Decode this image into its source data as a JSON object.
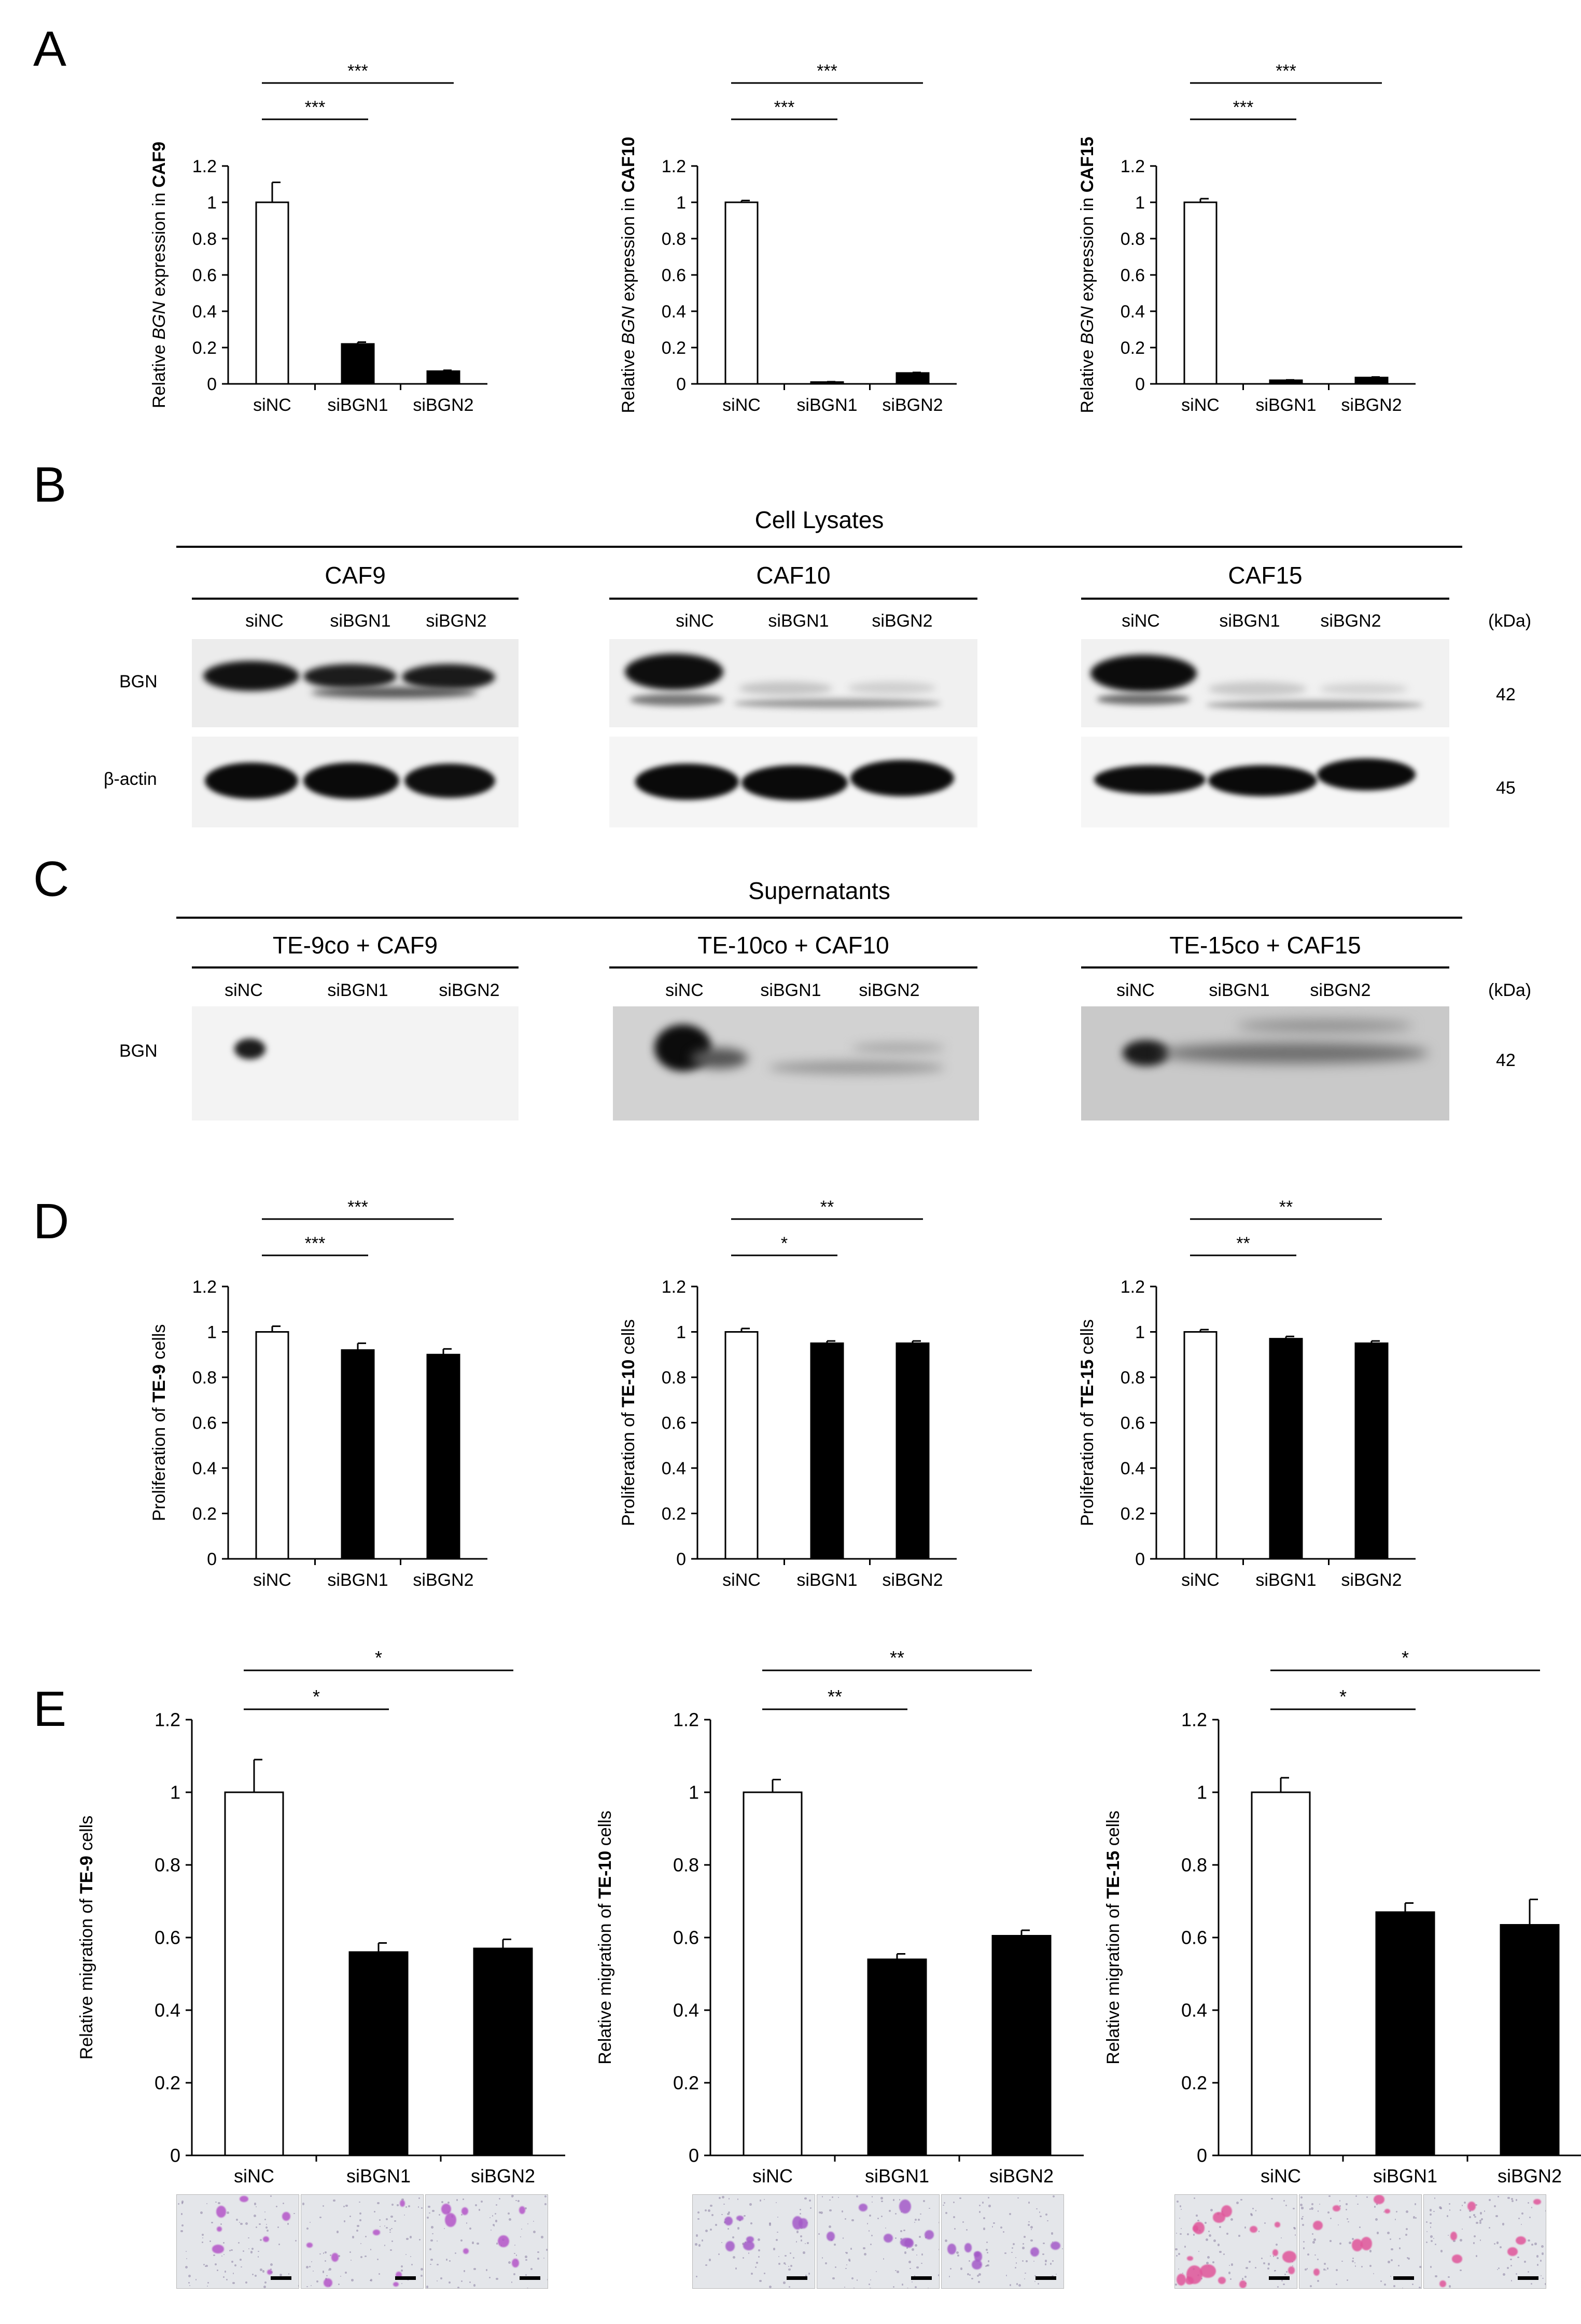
{
  "panels": {
    "A": "A",
    "B": "B",
    "C": "C",
    "D": "D",
    "E": "E"
  },
  "chart_data": [
    {
      "id": "A1",
      "type": "bar",
      "categories": [
        "siNC",
        "siBGN1",
        "siBGN2"
      ],
      "values": [
        1.0,
        0.22,
        0.07
      ],
      "errors": [
        0.11,
        0.01,
        0.005
      ],
      "ylabel_pre": "Relative ",
      "ylabel_italic": "BGN",
      "ylabel_mid": " expression in ",
      "ylabel_bold": "CAF9",
      "ylim": [
        0,
        1.2
      ],
      "yticks": [
        0,
        0.2,
        0.4,
        0.6,
        0.8,
        1,
        1.2
      ],
      "sig": [
        {
          "from": 0,
          "to": 1,
          "label": "***"
        },
        {
          "from": 0,
          "to": 2,
          "label": "***"
        }
      ]
    },
    {
      "id": "A2",
      "type": "bar",
      "categories": [
        "siNC",
        "siBGN1",
        "siBGN2"
      ],
      "values": [
        1.0,
        0.01,
        0.06
      ],
      "errors": [
        0.01,
        0.002,
        0.003
      ],
      "ylabel_pre": "Relative ",
      "ylabel_italic": "BGN",
      "ylabel_mid": " expression in ",
      "ylabel_bold": "CAF10",
      "ylim": [
        0,
        1.2
      ],
      "yticks": [
        0,
        0.2,
        0.4,
        0.6,
        0.8,
        1,
        1.2
      ],
      "sig": [
        {
          "from": 0,
          "to": 1,
          "label": "***"
        },
        {
          "from": 0,
          "to": 2,
          "label": "***"
        }
      ]
    },
    {
      "id": "A3",
      "type": "bar",
      "categories": [
        "siNC",
        "siBGN1",
        "siBGN2"
      ],
      "values": [
        1.0,
        0.02,
        0.035
      ],
      "errors": [
        0.02,
        0.002,
        0.003
      ],
      "ylabel_pre": "Relative ",
      "ylabel_italic": "BGN",
      "ylabel_mid": " expression in ",
      "ylabel_bold": "CAF15",
      "ylim": [
        0,
        1.2
      ],
      "yticks": [
        0,
        0.2,
        0.4,
        0.6,
        0.8,
        1,
        1.2
      ],
      "sig": [
        {
          "from": 0,
          "to": 1,
          "label": "***"
        },
        {
          "from": 0,
          "to": 2,
          "label": "***"
        }
      ]
    },
    {
      "id": "D1",
      "type": "bar",
      "categories": [
        "siNC",
        "siBGN1",
        "siBGN2"
      ],
      "values": [
        1.0,
        0.92,
        0.9
      ],
      "errors": [
        0.025,
        0.03,
        0.025
      ],
      "ylabel_pre": "Proliferation of ",
      "ylabel_italic": "",
      "ylabel_mid": "",
      "ylabel_bold": "TE-9",
      "ylabel_post": " cells",
      "ylim": [
        0,
        1.2
      ],
      "yticks": [
        0,
        0.2,
        0.4,
        0.6,
        0.8,
        1,
        1.2
      ],
      "sig": [
        {
          "from": 0,
          "to": 1,
          "label": "***"
        },
        {
          "from": 0,
          "to": 2,
          "label": "***"
        }
      ]
    },
    {
      "id": "D2",
      "type": "bar",
      "categories": [
        "siNC",
        "siBGN1",
        "siBGN2"
      ],
      "values": [
        1.0,
        0.95,
        0.95
      ],
      "errors": [
        0.015,
        0.01,
        0.01
      ],
      "ylabel_pre": "Proliferation of ",
      "ylabel_italic": "",
      "ylabel_mid": "",
      "ylabel_bold": "TE-10",
      "ylabel_post": " cells",
      "ylim": [
        0,
        1.2
      ],
      "yticks": [
        0,
        0.2,
        0.4,
        0.6,
        0.8,
        1,
        1.2
      ],
      "sig": [
        {
          "from": 0,
          "to": 1,
          "label": "*"
        },
        {
          "from": 0,
          "to": 2,
          "label": "**"
        }
      ]
    },
    {
      "id": "D3",
      "type": "bar",
      "categories": [
        "siNC",
        "siBGN1",
        "siBGN2"
      ],
      "values": [
        1.0,
        0.97,
        0.95
      ],
      "errors": [
        0.01,
        0.01,
        0.01
      ],
      "ylabel_pre": "Proliferation of ",
      "ylabel_italic": "",
      "ylabel_mid": "",
      "ylabel_bold": "TE-15",
      "ylabel_post": " cells",
      "ylim": [
        0,
        1.2
      ],
      "yticks": [
        0,
        0.2,
        0.4,
        0.6,
        0.8,
        1,
        1.2
      ],
      "sig": [
        {
          "from": 0,
          "to": 1,
          "label": "**"
        },
        {
          "from": 0,
          "to": 2,
          "label": "**"
        }
      ]
    },
    {
      "id": "E1",
      "type": "bar",
      "categories": [
        "siNC",
        "siBGN1",
        "siBGN2"
      ],
      "values": [
        1.0,
        0.56,
        0.57
      ],
      "errors": [
        0.09,
        0.025,
        0.025
      ],
      "ylabel_pre": "Relative migration of ",
      "ylabel_italic": "",
      "ylabel_mid": "",
      "ylabel_bold": "TE-9",
      "ylabel_post": " cells",
      "ylim": [
        0,
        1.2
      ],
      "yticks": [
        0,
        0.2,
        0.4,
        0.6,
        0.8,
        1,
        1.2
      ],
      "sig": [
        {
          "from": 0,
          "to": 1,
          "label": "*"
        },
        {
          "from": 0,
          "to": 2,
          "label": "*"
        }
      ]
    },
    {
      "id": "E2",
      "type": "bar",
      "categories": [
        "siNC",
        "siBGN1",
        "siBGN2"
      ],
      "values": [
        1.0,
        0.54,
        0.605
      ],
      "errors": [
        0.035,
        0.015,
        0.015
      ],
      "ylabel_pre": "Relative migration of ",
      "ylabel_italic": "",
      "ylabel_mid": "",
      "ylabel_bold": "TE-10",
      "ylabel_post": " cells",
      "ylim": [
        0,
        1.2
      ],
      "yticks": [
        0,
        0.2,
        0.4,
        0.6,
        0.8,
        1,
        1.2
      ],
      "sig": [
        {
          "from": 0,
          "to": 1,
          "label": "**"
        },
        {
          "from": 0,
          "to": 2,
          "label": "**"
        }
      ]
    },
    {
      "id": "E3",
      "type": "bar",
      "categories": [
        "siNC",
        "siBGN1",
        "siBGN2"
      ],
      "values": [
        1.0,
        0.67,
        0.635
      ],
      "errors": [
        0.04,
        0.025,
        0.07
      ],
      "ylabel_pre": "Relative migration of ",
      "ylabel_italic": "",
      "ylabel_mid": "",
      "ylabel_bold": "TE-15",
      "ylabel_post": " cells",
      "ylim": [
        0,
        1.2
      ],
      "yticks": [
        0,
        0.2,
        0.4,
        0.6,
        0.8,
        1,
        1.2
      ],
      "sig": [
        {
          "from": 0,
          "to": 1,
          "label": "*"
        },
        {
          "from": 0,
          "to": 2,
          "label": "*"
        }
      ]
    }
  ],
  "blotB": {
    "title": "Cell Lysates",
    "groups": [
      {
        "name": "CAF9",
        "lanes": [
          "siNC",
          "siBGN1",
          "siBGN2"
        ]
      },
      {
        "name": "CAF10",
        "lanes": [
          "siNC",
          "siBGN1",
          "siBGN2"
        ]
      },
      {
        "name": "CAF15",
        "lanes": [
          "siNC",
          "siBGN1",
          "siBGN2"
        ]
      }
    ],
    "rows": [
      "BGN",
      "β-actin"
    ],
    "kda_unit": "(kDa)",
    "kda": [
      "42",
      "45"
    ]
  },
  "blotC": {
    "title": "Supernatants",
    "groups": [
      {
        "name": "TE-9co + CAF9",
        "lanes": [
          "siNC",
          "siBGN1",
          "siBGN2"
        ]
      },
      {
        "name": "TE-10co + CAF10",
        "lanes": [
          "siNC",
          "siBGN1",
          "siBGN2"
        ]
      },
      {
        "name": "TE-15co + CAF15",
        "lanes": [
          "siNC",
          "siBGN1",
          "siBGN2"
        ]
      }
    ],
    "rows": [
      "BGN"
    ],
    "kda_unit": "(kDa)",
    "kda": [
      "42"
    ]
  },
  "colors": {
    "control_bar": "#ffffff",
    "knockdown_bar": "#000000",
    "stain_TE9": "#b455c8",
    "stain_TE10": "#a45ac8",
    "stain_TE15": "#e0559a"
  }
}
